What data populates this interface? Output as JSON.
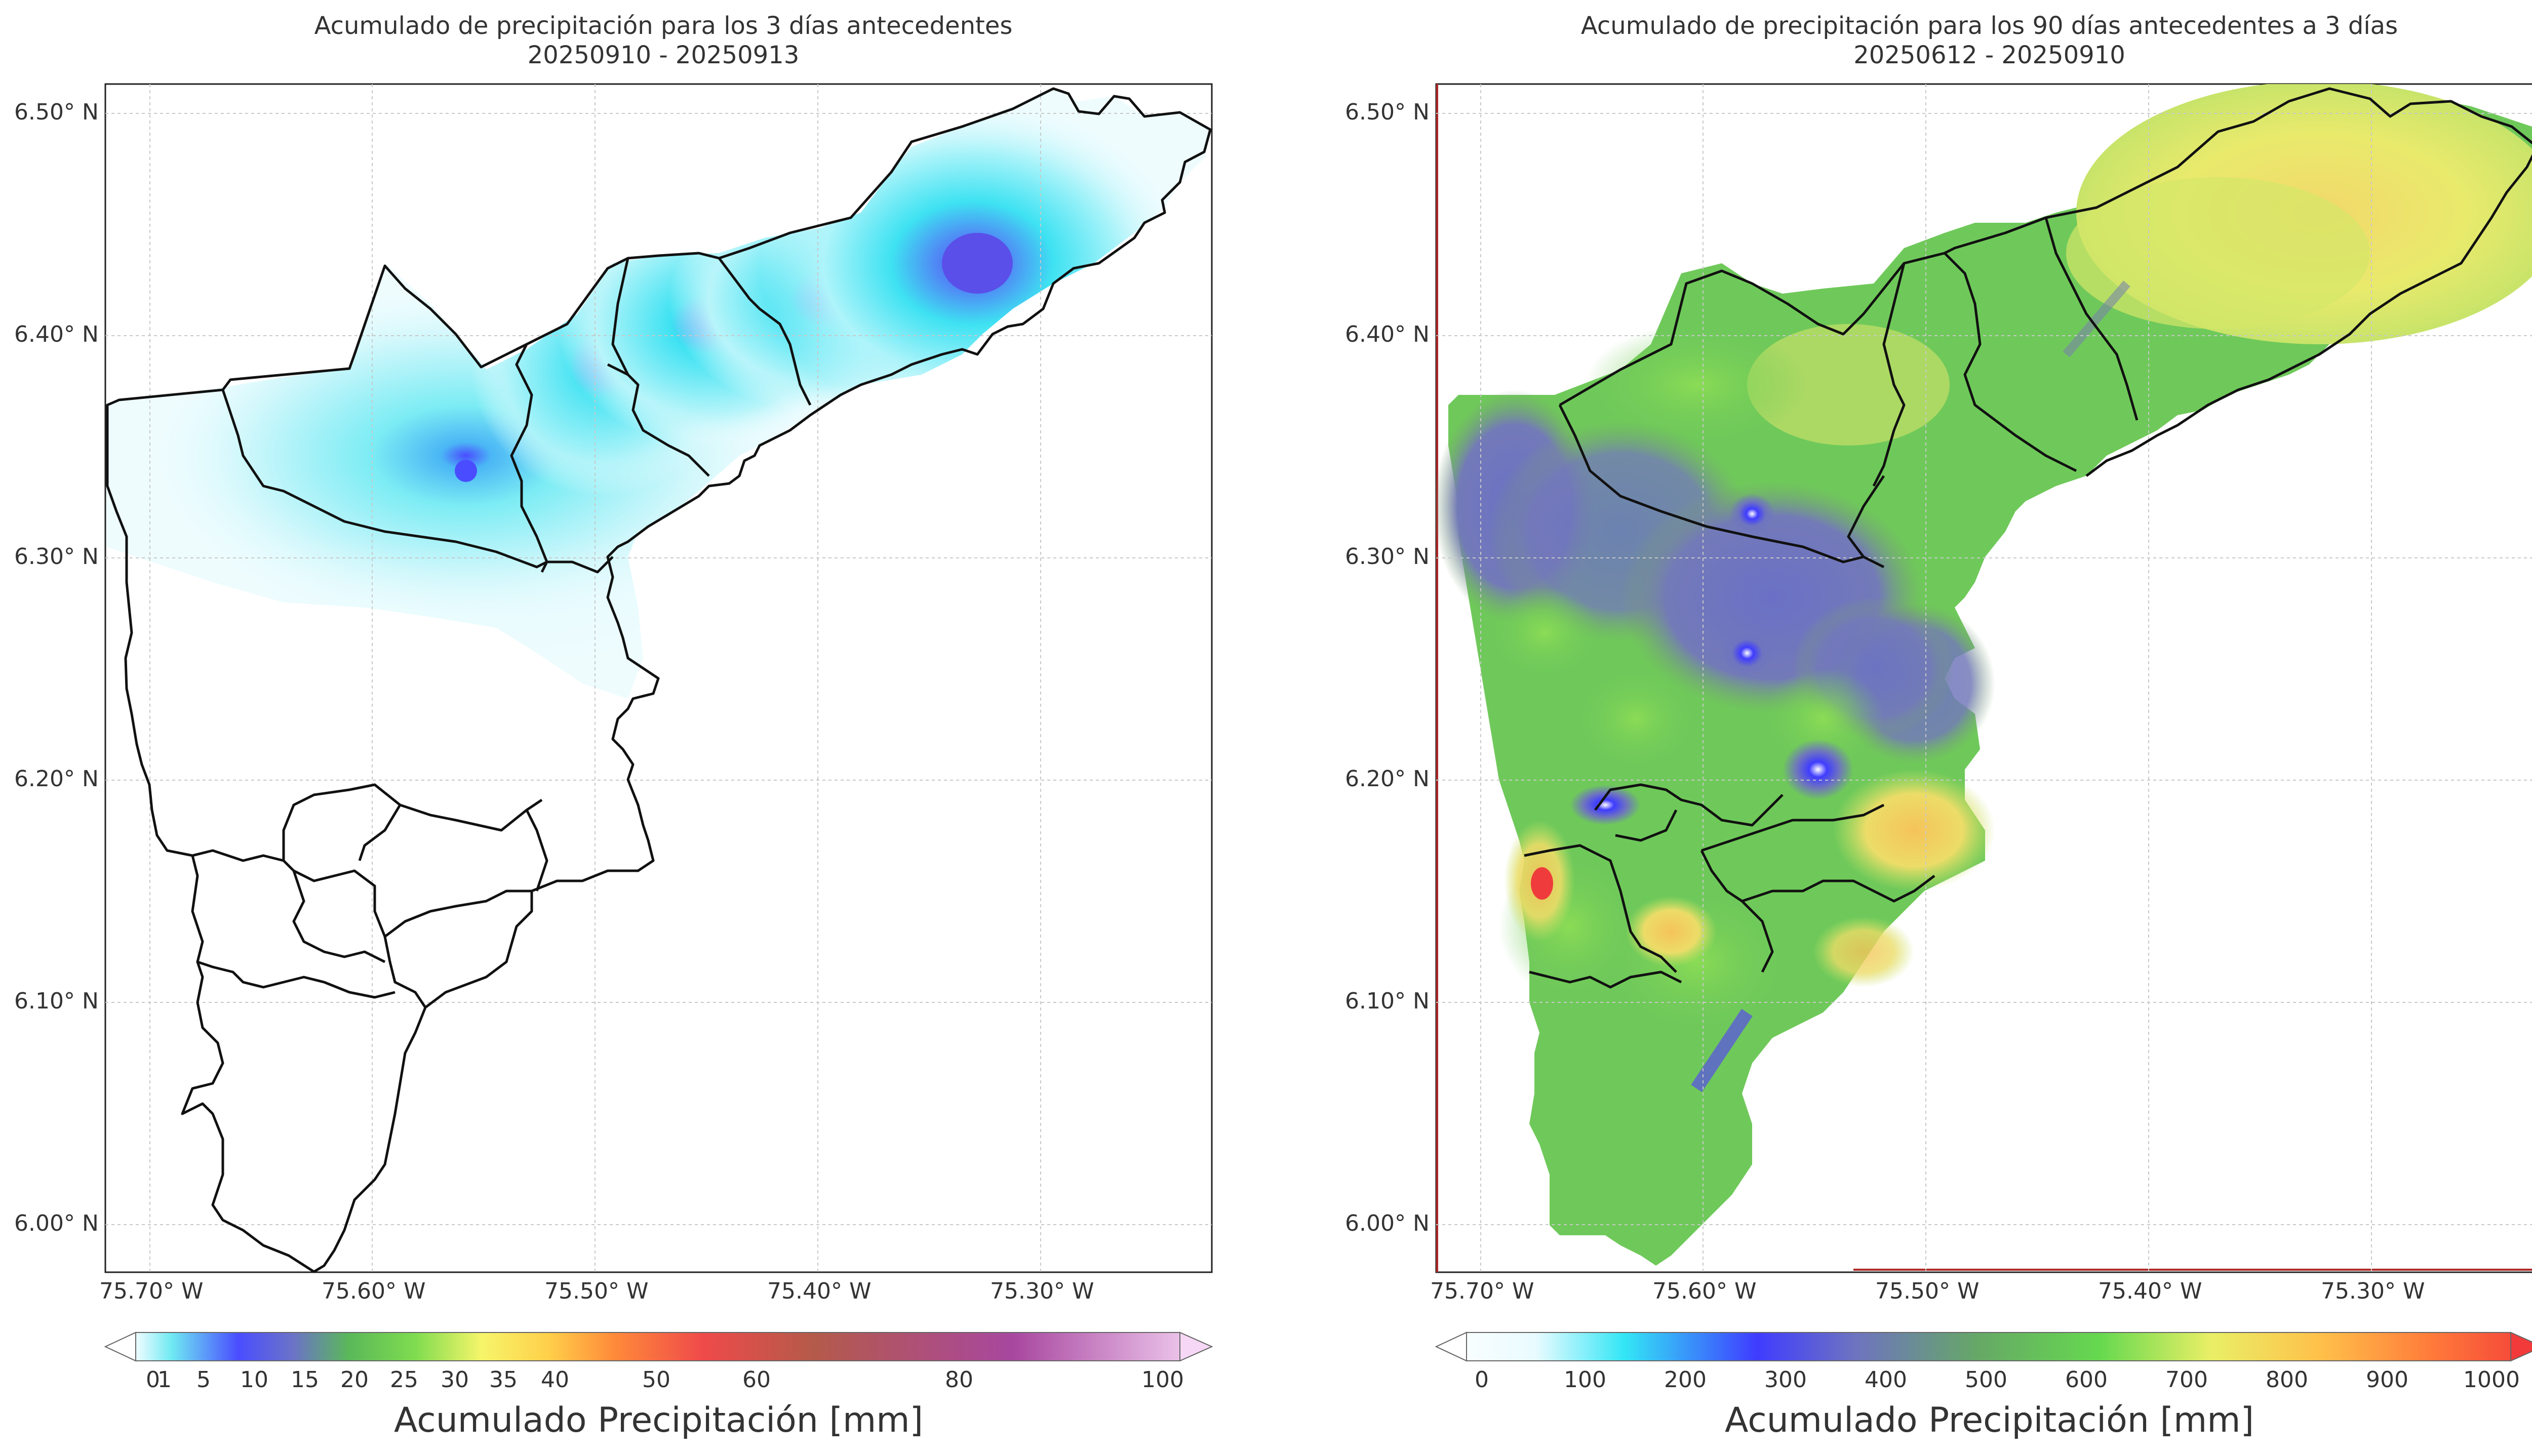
{
  "left_map": {
    "title_line1": "Acumulado de precipitación para los 3 días antecedentes",
    "title_line2": "20250910 - 20250913",
    "lat_ticks": [
      "6.50° N",
      "6.40° N",
      "6.30° N",
      "6.20° N",
      "6.10° N",
      "6.00° N"
    ],
    "lon_ticks": [
      "75.70° W",
      "75.60° W",
      "75.50° W",
      "75.40° W",
      "75.30° W"
    ],
    "colorbar": {
      "ticks": [
        "0",
        "1",
        "5",
        "10",
        "15",
        "20",
        "25",
        "30",
        "35",
        "40",
        "50",
        "60",
        "80",
        "100"
      ],
      "label": "Acumulado Precipitación [mm]",
      "colors": [
        "#ffffff",
        "#e6fbff",
        "#6fe9f2",
        "#4a4dff",
        "#6b73c7",
        "#5ab85a",
        "#7fdc4f",
        "#f6f56a",
        "#ffd04a",
        "#ff8a3a",
        "#ef4a4a",
        "#b45a4a",
        "#a8479f",
        "#f6d8f6"
      ]
    }
  },
  "right_map": {
    "title_line1": "Acumulado de precipitación para los 90 días antecedentes a 3 días",
    "title_line2": "20250612 - 20250910",
    "lat_ticks": [
      "6.50° N",
      "6.40° N",
      "6.30° N",
      "6.20° N",
      "6.10° N",
      "6.00° N"
    ],
    "lon_ticks": [
      "75.70° W",
      "75.60° W",
      "75.50° W",
      "75.40° W",
      "75.30° W"
    ],
    "colorbar": {
      "ticks": [
        "0",
        "100",
        "200",
        "300",
        "400",
        "500",
        "600",
        "700",
        "800",
        "900",
        "1000"
      ],
      "label": "Acumulado Precipitación [mm]",
      "colors": [
        "#ffffff",
        "#e9fbff",
        "#33e6f5",
        "#3f3cff",
        "#6e74bf",
        "#66a866",
        "#66d94f",
        "#e9ef66",
        "#ffc04a",
        "#ff7a3a",
        "#f23a3a"
      ]
    }
  },
  "colors": {
    "light_cyan": "#c8f7fb",
    "cyan": "#3ee2f2",
    "blue_purple": "#5a54f0",
    "green": "#6fc95a",
    "yellow": "#e8e86a",
    "slate_blue": "#7279c0",
    "border": "#111111"
  }
}
